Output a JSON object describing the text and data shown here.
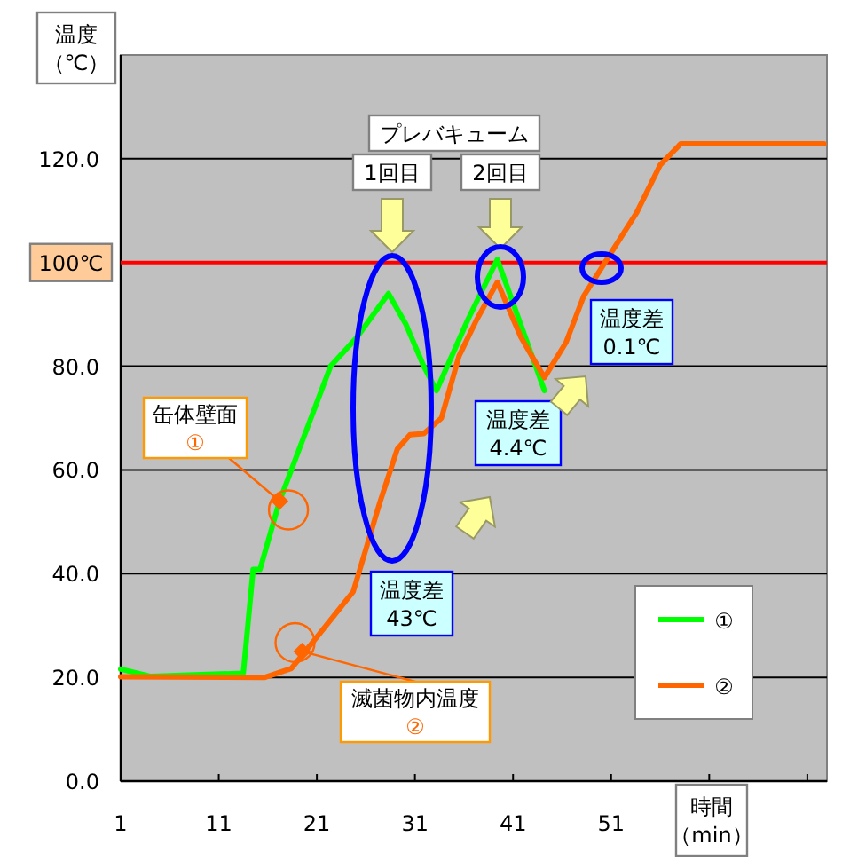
{
  "chart_data": {
    "type": "line",
    "xlabel": "時間（min）",
    "ylabel": "温度（℃）",
    "xlim": [
      1,
      73
    ],
    "ylim": [
      0,
      140
    ],
    "xticks": [
      1,
      11,
      21,
      31,
      41,
      51,
      {
        "value": 61,
        "label": null
      },
      {
        "value": 71,
        "label": null
      }
    ],
    "yticks": [
      {
        "value": 0,
        "label": "0.0"
      },
      {
        "value": 20,
        "label": "20.0"
      },
      {
        "value": 40,
        "label": "40.0"
      },
      {
        "value": 60,
        "label": "60.0"
      },
      {
        "value": 80,
        "label": "80.0"
      },
      {
        "value": 100,
        "label": null
      },
      {
        "value": 120,
        "label": "120.0"
      }
    ],
    "grid": "y",
    "legend": "bottom right",
    "series": [
      {
        "name": "①",
        "color": "#00ff00",
        "x": [
          1,
          4,
          13.5,
          14.5,
          15.2,
          17.2,
          20.1,
          22.4,
          25.1,
          28.3,
          30.1,
          31.9,
          33.2,
          36.4,
          39.4,
          44.2
        ],
        "values": [
          21.6,
          20.2,
          20.8,
          40.8,
          40.8,
          54,
          68.5,
          80,
          85.6,
          94,
          88,
          80,
          75.3,
          89,
          100.6,
          75.3
        ]
      },
      {
        "name": "②",
        "color": "#ff6600",
        "x": [
          1,
          15.7,
          18.4,
          21.1,
          24.7,
          27.4,
          29.2,
          30.5,
          31.9,
          33.7,
          35.5,
          37.3,
          39.4,
          41.8,
          44.2,
          46.4,
          48.2,
          50.7,
          53.6,
          56,
          58.1,
          72.7
        ],
        "values": [
          20.1,
          20,
          21.7,
          28,
          36.5,
          53.6,
          64,
          66.8,
          67,
          70,
          82,
          89,
          96.2,
          85.6,
          77.8,
          84.6,
          93.5,
          101,
          109.6,
          118.8,
          122.9,
          122.9
        ]
      }
    ],
    "ref_lines": [
      {
        "axis": "y",
        "value": 100,
        "label": "100℃",
        "color": "#ff0000"
      }
    ],
    "annotations": [
      "プレバキューム",
      "1回目",
      "2回目",
      "温度差43℃",
      "温度差4.4℃",
      "温度差0.1℃",
      {
        "text": "缶体壁面①",
        "x": 17.2,
        "y": 54
      },
      {
        "text": "滅菌物内温度②",
        "x": 19.5,
        "y": 25
      }
    ]
  }
}
